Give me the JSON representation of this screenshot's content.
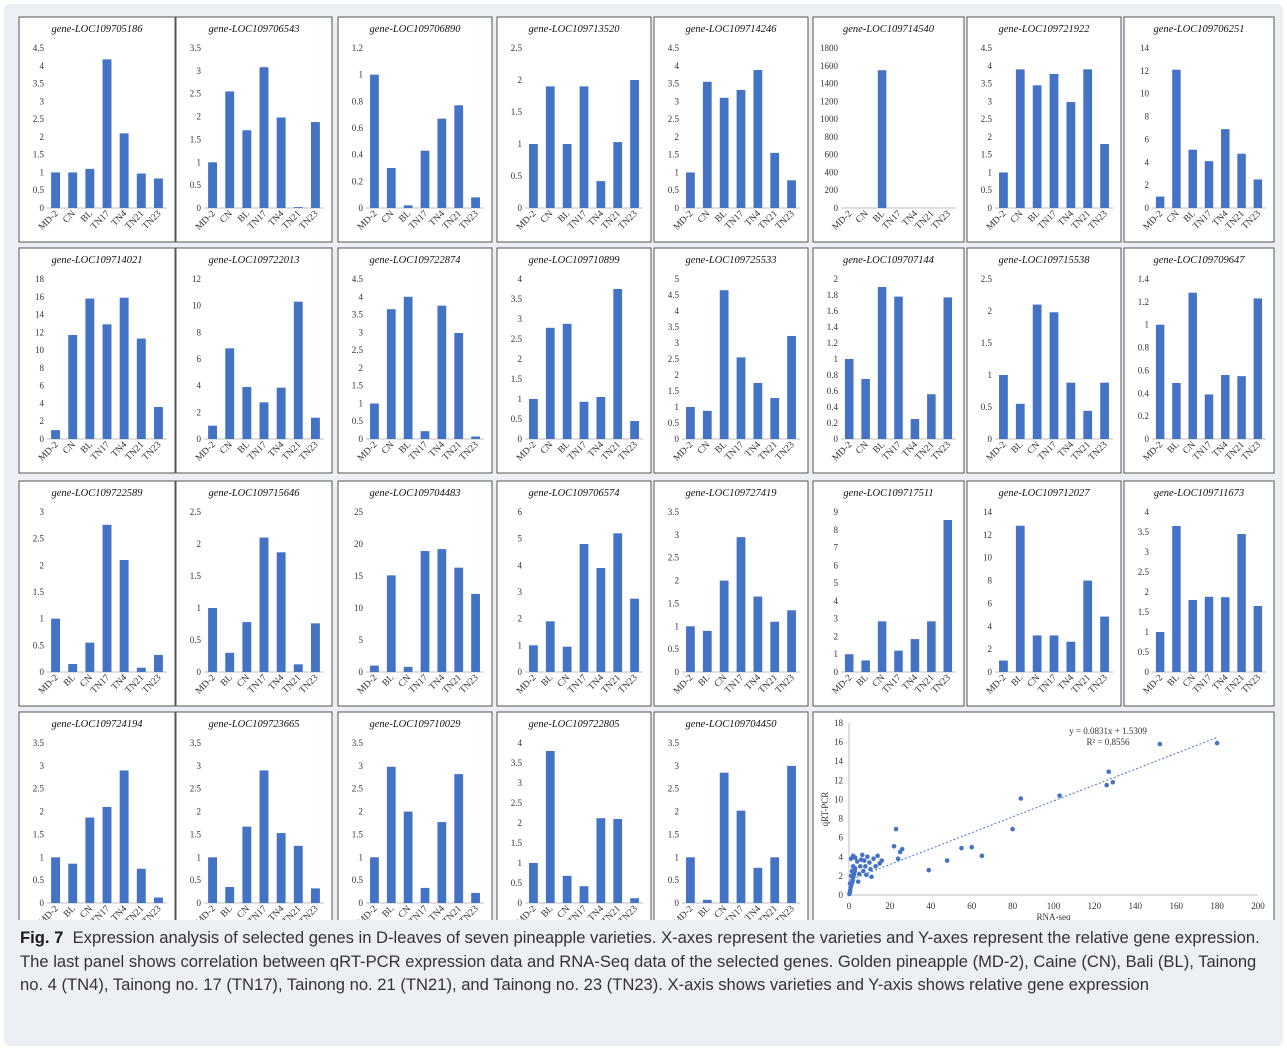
{
  "colors": {
    "bar": "#4472c4",
    "panel_border": "#555555",
    "background": "#ecf0f5",
    "trendline": "#4472c4"
  },
  "chart_data": [
    {
      "type": "bar",
      "title": "gene-LOC109705186",
      "categories": [
        "MD-2",
        "CN",
        "BL",
        "TN17",
        "TN4",
        "TN21",
        "TN23"
      ],
      "values": [
        1.0,
        1.0,
        1.1,
        4.18,
        2.1,
        0.97,
        0.83
      ],
      "ylim": [
        0,
        4.5
      ],
      "yticks": [
        "0",
        "0.5",
        "1",
        "1.5",
        "2",
        "2.5",
        "3",
        "3.5",
        "4",
        "4.5"
      ]
    },
    {
      "type": "bar",
      "title": "gene-LOC109706543",
      "categories": [
        "MD-2",
        "CN",
        "BL",
        "TN17",
        "TN4",
        "TN21",
        "TN23"
      ],
      "values": [
        1.0,
        2.55,
        1.7,
        3.08,
        1.98,
        0.02,
        1.88
      ],
      "ylim": [
        0,
        3.5
      ],
      "yticks": [
        "0",
        "0.5",
        "1",
        "1.5",
        "2",
        "2.5",
        "3",
        "3.5"
      ]
    },
    {
      "type": "bar",
      "title": "gene-LOC109706890",
      "categories": [
        "MD-2",
        "CN",
        "BL",
        "TN17",
        "TN4",
        "TN21",
        "TN23"
      ],
      "values": [
        1.0,
        0.3,
        0.02,
        0.43,
        0.67,
        0.77,
        0.08
      ],
      "ylim": [
        0,
        1.2
      ],
      "yticks": [
        "0",
        "0.2",
        "0.4",
        "0.6",
        "0.8",
        "1",
        "1.2"
      ]
    },
    {
      "type": "bar",
      "title": "gene-LOC109713520",
      "categories": [
        "MD-2",
        "CN",
        "BL",
        "TN17",
        "TN4",
        "TN21",
        "TN23"
      ],
      "values": [
        1.0,
        1.9,
        1.0,
        1.9,
        0.42,
        1.03,
        2.0
      ],
      "ylim": [
        0,
        2.5
      ],
      "yticks": [
        "0",
        "0.5",
        "1",
        "1.5",
        "2",
        "2.5"
      ]
    },
    {
      "type": "bar",
      "title": "gene-LOC109714246",
      "categories": [
        "MD-2",
        "CN",
        "BL",
        "TN17",
        "TN4",
        "TN21",
        "TN23"
      ],
      "values": [
        1.0,
        3.55,
        3.1,
        3.32,
        3.88,
        1.55,
        0.78
      ],
      "ylim": [
        0,
        4.5
      ],
      "yticks": [
        "0",
        "0.5",
        "1",
        "1.5",
        "2",
        "2.5",
        "3",
        "3.5",
        "4",
        "4.5"
      ]
    },
    {
      "type": "bar",
      "title": "gene-LOC109714540",
      "categories": [
        "MD-2",
        "CN",
        "BL",
        "TN17",
        "TN4",
        "TN21",
        "TN23"
      ],
      "values": [
        1,
        1,
        1550,
        1,
        1,
        1,
        1
      ],
      "ylim": [
        0,
        1800
      ],
      "yticks": [
        "0",
        "200",
        "400",
        "600",
        "800",
        "1000",
        "1200",
        "1400",
        "1600",
        "1800"
      ]
    },
    {
      "type": "bar",
      "title": "gene-LOC109721922",
      "categories": [
        "MD-2",
        "CN",
        "BL",
        "TN17",
        "TN4",
        "TN21",
        "TN23"
      ],
      "values": [
        1.0,
        3.9,
        3.45,
        3.77,
        2.98,
        3.9,
        1.8
      ],
      "ylim": [
        0,
        4.5
      ],
      "yticks": [
        "0",
        "0.5",
        "1",
        "1.5",
        "2",
        "2.5",
        "3",
        "3.5",
        "4",
        "4.5"
      ]
    },
    {
      "type": "bar",
      "title": "gene-LOC109706251",
      "categories": [
        "MD-2",
        "CN",
        "BL",
        "TN17",
        "TN4",
        "TN21",
        "TN23"
      ],
      "values": [
        1.0,
        12.1,
        5.1,
        4.1,
        6.9,
        4.75,
        2.5
      ],
      "ylim": [
        0,
        14
      ],
      "yticks": [
        "0",
        "2",
        "4",
        "6",
        "8",
        "10",
        "12",
        "14"
      ]
    },
    {
      "type": "bar",
      "title": "gene-LOC109714021",
      "categories": [
        "MD-2",
        "CN",
        "BL",
        "TN17",
        "TN4",
        "TN21",
        "TN23"
      ],
      "values": [
        1.0,
        11.7,
        15.8,
        12.9,
        15.9,
        11.3,
        3.6
      ],
      "ylim": [
        0,
        18
      ],
      "yticks": [
        "0",
        "2",
        "4",
        "6",
        "8",
        "10",
        "12",
        "14",
        "16",
        "18"
      ]
    },
    {
      "type": "bar",
      "title": "gene-LOC109722013",
      "categories": [
        "MD-2",
        "CN",
        "BL",
        "TN17",
        "TN4",
        "TN21",
        "TN23"
      ],
      "values": [
        1.0,
        6.8,
        3.9,
        2.75,
        3.85,
        10.3,
        1.6
      ],
      "ylim": [
        0,
        12
      ],
      "yticks": [
        "0",
        "2",
        "4",
        "6",
        "8",
        "10",
        "12"
      ]
    },
    {
      "type": "bar",
      "title": "gene-LOC109722874",
      "categories": [
        "MD-2",
        "CN",
        "BL",
        "TN17",
        "TN4",
        "TN21",
        "TN23"
      ],
      "values": [
        1.0,
        3.65,
        4.0,
        0.22,
        3.75,
        2.98,
        0.07
      ],
      "ylim": [
        0,
        4.5
      ],
      "yticks": [
        "0",
        "0.5",
        "1",
        "1.5",
        "2",
        "2.5",
        "3",
        "3.5",
        "4",
        "4.5"
      ]
    },
    {
      "type": "bar",
      "title": "gene-LOC109710899",
      "categories": [
        "MD-2",
        "CN",
        "BL",
        "TN17",
        "TN4",
        "TN21",
        "TN23"
      ],
      "values": [
        1.0,
        2.78,
        2.88,
        0.93,
        1.05,
        3.75,
        0.45
      ],
      "ylim": [
        0,
        4
      ],
      "yticks": [
        "0",
        "0.5",
        "1",
        "1.5",
        "2",
        "2.5",
        "3",
        "3.5",
        "4"
      ]
    },
    {
      "type": "bar",
      "title": "gene-LOC109725533",
      "categories": [
        "MD-2",
        "CN",
        "BL",
        "TN17",
        "TN4",
        "TN21",
        "TN23"
      ],
      "values": [
        1.0,
        0.88,
        4.65,
        2.55,
        1.75,
        1.28,
        3.22
      ],
      "ylim": [
        0,
        5
      ],
      "yticks": [
        "0",
        "0.5",
        "1",
        "1.5",
        "2",
        "2.5",
        "3",
        "3.5",
        "4",
        "4.5",
        "5"
      ]
    },
    {
      "type": "bar",
      "title": "gene-LOC109707144",
      "categories": [
        "MD-2",
        "CN",
        "BL",
        "TN17",
        "TN4",
        "TN21",
        "TN23"
      ],
      "values": [
        1.0,
        0.75,
        1.9,
        1.78,
        0.25,
        0.56,
        1.77
      ],
      "ylim": [
        0,
        2
      ],
      "yticks": [
        "0",
        "0.2",
        "0.4",
        "0.6",
        "0.8",
        "1",
        "1.2",
        "1.4",
        "1.6",
        "1.8",
        "2"
      ]
    },
    {
      "type": "bar",
      "title": "gene-LOC109715538",
      "categories": [
        "MD-2",
        "BL",
        "CN",
        "TN17",
        "TN4",
        "TN21",
        "TN23"
      ],
      "values": [
        1.0,
        0.55,
        2.1,
        1.98,
        0.88,
        0.44,
        0.88
      ],
      "ylim": [
        0,
        2.5
      ],
      "yticks": [
        "0",
        "0.5",
        "1",
        "1.5",
        "2",
        "2.5"
      ]
    },
    {
      "type": "bar",
      "title": "gene-LOC109709647",
      "categories": [
        "MD-2",
        "BL",
        "CN",
        "TN17",
        "TN4",
        "TN21",
        "TN23"
      ],
      "values": [
        1.0,
        0.49,
        1.28,
        0.39,
        0.56,
        0.55,
        1.23
      ],
      "ylim": [
        0,
        1.4
      ],
      "yticks": [
        "0",
        "0.2",
        "0.4",
        "0.6",
        "0.8",
        "1",
        "1.2",
        "1.4"
      ]
    },
    {
      "type": "bar",
      "title": "gene-LOC109722589",
      "categories": [
        "MD-2",
        "BL",
        "CN",
        "TN17",
        "TN4",
        "TN21",
        "TN23"
      ],
      "values": [
        1.0,
        0.15,
        0.55,
        2.76,
        2.1,
        0.08,
        0.32
      ],
      "ylim": [
        0,
        3
      ],
      "yticks": [
        "0",
        "0.5",
        "1",
        "1.5",
        "2",
        "2.5",
        "3"
      ]
    },
    {
      "type": "bar",
      "title": "gene-LOC109715646",
      "categories": [
        "MD-2",
        "BL",
        "CN",
        "TN17",
        "TN4",
        "TN21",
        "TN23"
      ],
      "values": [
        1.0,
        0.3,
        0.78,
        2.1,
        1.87,
        0.12,
        0.76
      ],
      "ylim": [
        0,
        2.5
      ],
      "yticks": [
        "0",
        "0.5",
        "1",
        "1.5",
        "2",
        "2.5"
      ]
    },
    {
      "type": "bar",
      "title": "gene-LOC109704483",
      "categories": [
        "MD-2",
        "BL",
        "CN",
        "TN17",
        "TN4",
        "TN21",
        "TN23"
      ],
      "values": [
        1.0,
        15.1,
        0.8,
        18.9,
        19.2,
        16.3,
        12.2
      ],
      "ylim": [
        0,
        25
      ],
      "yticks": [
        "0",
        "5",
        "10",
        "15",
        "20",
        "25"
      ]
    },
    {
      "type": "bar",
      "title": "gene-LOC109706574",
      "categories": [
        "MD-2",
        "BL",
        "CN",
        "TN17",
        "TN4",
        "TN21",
        "TN23"
      ],
      "values": [
        1.0,
        1.9,
        0.95,
        4.8,
        3.9,
        5.2,
        2.75
      ],
      "ylim": [
        0,
        6
      ],
      "yticks": [
        "0",
        "1",
        "2",
        "3",
        "4",
        "5",
        "6"
      ]
    },
    {
      "type": "bar",
      "title": "gene-LOC109727419",
      "categories": [
        "MD-2",
        "BL",
        "CN",
        "TN17",
        "TN4",
        "TN21",
        "TN23"
      ],
      "values": [
        1.0,
        0.9,
        2.0,
        2.95,
        1.65,
        1.1,
        1.35
      ],
      "ylim": [
        0,
        3.5
      ],
      "yticks": [
        "0",
        "0.5",
        "1",
        "1.5",
        "2",
        "2.5",
        "3",
        "3.5"
      ]
    },
    {
      "type": "bar",
      "title": "gene-LOC109717511",
      "categories": [
        "MD-2",
        "BL",
        "CN",
        "TN17",
        "TN4",
        "TN21",
        "TN23"
      ],
      "values": [
        1.0,
        0.65,
        2.85,
        1.2,
        1.85,
        2.85,
        8.55
      ],
      "ylim": [
        0,
        9
      ],
      "yticks": [
        "0",
        "1",
        "2",
        "3",
        "4",
        "5",
        "6",
        "7",
        "8",
        "9"
      ]
    },
    {
      "type": "bar",
      "title": "gene-LOC109712027",
      "categories": [
        "MD-2",
        "BL",
        "CN",
        "TN17",
        "TN4",
        "TN21",
        "TN23"
      ],
      "values": [
        1.0,
        12.8,
        3.2,
        3.2,
        2.65,
        8.0,
        4.85
      ],
      "ylim": [
        0,
        14
      ],
      "yticks": [
        "0",
        "2",
        "4",
        "6",
        "8",
        "10",
        "12",
        "14"
      ]
    },
    {
      "type": "bar",
      "title": "gene-LOC109711673",
      "categories": [
        "MD-2",
        "BL",
        "CN",
        "TN17",
        "TN4",
        "TN21",
        "TN23"
      ],
      "values": [
        1.0,
        3.65,
        1.8,
        1.88,
        1.87,
        3.45,
        1.65
      ],
      "ylim": [
        0,
        4
      ],
      "yticks": [
        "0",
        "0.5",
        "1",
        "1.5",
        "2",
        "2.5",
        "3",
        "3.5",
        "4"
      ]
    },
    {
      "type": "bar",
      "title": "gene-LOC109724194",
      "categories": [
        "MD-2",
        "BL",
        "CN",
        "TN17",
        "TN4",
        "TN21",
        "TN23"
      ],
      "values": [
        1.0,
        0.86,
        1.87,
        2.1,
        2.9,
        0.75,
        0.12
      ],
      "ylim": [
        0,
        3.5
      ],
      "yticks": [
        "0",
        "0.5",
        "1",
        "1.5",
        "2",
        "2.5",
        "3",
        "3.5"
      ]
    },
    {
      "type": "bar",
      "title": "gene-LOC109723665",
      "categories": [
        "MD-2",
        "BL",
        "CN",
        "TN17",
        "TN4",
        "TN21",
        "TN23"
      ],
      "values": [
        1.0,
        0.35,
        1.67,
        2.9,
        1.53,
        1.25,
        0.32
      ],
      "ylim": [
        0,
        3.5
      ],
      "yticks": [
        "0",
        "0.5",
        "1",
        "1.5",
        "2",
        "2.5",
        "3",
        "3.5"
      ]
    },
    {
      "type": "bar",
      "title": "gene-LOC109710029",
      "categories": [
        "MD-2",
        "BL",
        "CN",
        "TN17",
        "TN4",
        "TN21",
        "TN23"
      ],
      "values": [
        1.0,
        2.98,
        2.0,
        0.33,
        1.77,
        2.82,
        0.22
      ],
      "ylim": [
        0,
        3.5
      ],
      "yticks": [
        "0",
        "0.5",
        "1",
        "1.5",
        "2",
        "2.5",
        "3",
        "3.5"
      ]
    },
    {
      "type": "bar",
      "title": "gene-LOC109722805",
      "categories": [
        "MD-2",
        "BL",
        "CN",
        "TN17",
        "TN4",
        "TN21",
        "TN23"
      ],
      "values": [
        1.0,
        3.8,
        0.68,
        0.42,
        2.12,
        2.1,
        0.12
      ],
      "ylim": [
        0,
        4
      ],
      "yticks": [
        "0",
        "0.5",
        "1",
        "1.5",
        "2",
        "2.5",
        "3",
        "3.5",
        "4"
      ]
    },
    {
      "type": "bar",
      "title": "gene-LOC109704450",
      "categories": [
        "MD-2",
        "BL",
        "CN",
        "TN17",
        "TN4",
        "TN21",
        "TN23"
      ],
      "values": [
        1.0,
        0.07,
        2.85,
        2.02,
        0.77,
        1.0,
        3.0
      ],
      "ylim": [
        0,
        3.5
      ],
      "yticks": [
        "0",
        "0.5",
        "1",
        "1.5",
        "2",
        "2.5",
        "3",
        "3.5"
      ]
    },
    {
      "type": "scatter",
      "xlabel": "RNA-seq",
      "ylabel": "qRT-PCR",
      "xlim": [
        0,
        200
      ],
      "ylim": [
        0,
        18
      ],
      "xticks": [
        "0",
        "20",
        "40",
        "60",
        "80",
        "100",
        "120",
        "140",
        "160",
        "180",
        "200"
      ],
      "yticks": [
        "0",
        "2",
        "4",
        "6",
        "8",
        "10",
        "12",
        "14",
        "16",
        "18"
      ],
      "equation": "y = 0.0831x + 1.5309",
      "r2": "R² = 0.8556",
      "slope": 0.0831,
      "intercept": 1.5309,
      "points": [
        [
          0.2,
          0.1
        ],
        [
          0.4,
          0.3
        ],
        [
          0.6,
          0.5
        ],
        [
          0.8,
          0.8
        ],
        [
          1,
          1.0
        ],
        [
          1.2,
          1.1
        ],
        [
          1.5,
          1.3
        ],
        [
          1.8,
          1.5
        ],
        [
          2,
          1.8
        ],
        [
          2.2,
          2.0
        ],
        [
          2.5,
          2.2
        ],
        [
          2.8,
          2.5
        ],
        [
          3,
          2.8
        ],
        [
          0.5,
          1.2
        ],
        [
          1,
          2.0
        ],
        [
          1.5,
          2.5
        ],
        [
          2,
          3.0
        ],
        [
          1,
          3.8
        ],
        [
          2,
          4.1
        ],
        [
          3,
          3.9
        ],
        [
          4,
          3.5
        ],
        [
          4.5,
          1.4
        ],
        [
          5,
          2.2
        ],
        [
          5.5,
          3.0
        ],
        [
          6,
          3.7
        ],
        [
          6.5,
          4.2
        ],
        [
          7,
          2.5
        ],
        [
          7.5,
          3.6
        ],
        [
          8,
          3.0
        ],
        [
          8.5,
          2.1
        ],
        [
          9,
          4.0
        ],
        [
          10,
          3.4
        ],
        [
          10.5,
          2.7
        ],
        [
          11,
          1.9
        ],
        [
          12,
          3.8
        ],
        [
          13,
          3.0
        ],
        [
          14,
          4.1
        ],
        [
          15,
          3.3
        ],
        [
          16,
          3.6
        ],
        [
          22,
          5.1
        ],
        [
          23,
          6.9
        ],
        [
          24,
          3.8
        ],
        [
          25,
          4.5
        ],
        [
          26,
          4.8
        ],
        [
          39,
          2.6
        ],
        [
          48,
          3.6
        ],
        [
          55,
          4.9
        ],
        [
          60,
          5.0
        ],
        [
          65,
          4.1
        ],
        [
          80,
          6.9
        ],
        [
          84,
          10.1
        ],
        [
          103,
          10.4
        ],
        [
          126,
          11.5
        ],
        [
          127,
          12.9
        ],
        [
          129,
          11.8
        ],
        [
          152,
          15.8
        ],
        [
          180,
          15.9
        ]
      ]
    }
  ],
  "caption": {
    "label": "Fig. 7",
    "text": "Expression analysis of selected genes in D-leaves of seven pineapple varieties. X-axes represent the varieties and Y-axes represent the relative gene expression. The last panel shows correlation between qRT-PCR expression data and RNA-Seq data of the selected genes. Golden pineapple (MD-2), Caine (CN), Bali (BL), Tainong no. 4 (TN4), Tainong no. 17 (TN17), Tainong no. 21 (TN21), and Tainong no. 23 (TN23). X-axis shows varieties and Y-axis shows relative gene expression"
  }
}
